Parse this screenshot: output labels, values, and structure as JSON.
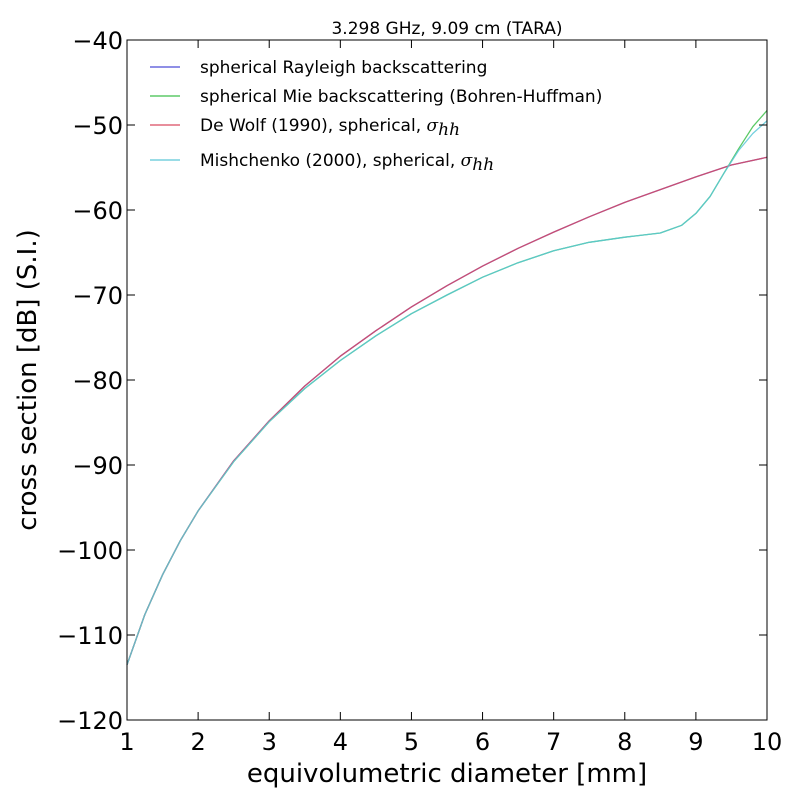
{
  "chart_data": {
    "type": "line",
    "title": "3.298 GHz, 9.09 cm (TARA)",
    "xlabel": "equivolumetric diameter [mm]",
    "ylabel": "cross section [dB] (S.I.)",
    "xlim": [
      1,
      10
    ],
    "ylim": [
      -120,
      -40
    ],
    "xticks": [
      1,
      2,
      3,
      4,
      5,
      6,
      7,
      8,
      9,
      10
    ],
    "yticks": [
      -120,
      -110,
      -100,
      -90,
      -80,
      -70,
      -60,
      -50,
      -40
    ],
    "xtick_labels": [
      "1",
      "2",
      "3",
      "4",
      "5",
      "6",
      "7",
      "8",
      "9",
      "10"
    ],
    "ytick_labels": [
      "−120",
      "−110",
      "−100",
      "−90",
      "−80",
      "−70",
      "−60",
      "−50",
      "−40"
    ],
    "grid": false,
    "legend_position": "top-left",
    "series": [
      {
        "name": "spherical Rayleigh backscattering",
        "color": "#4c4cd6",
        "x": [
          1.0,
          1.25,
          1.5,
          1.75,
          2.0,
          2.5,
          3.0,
          3.5,
          4.0,
          4.5,
          5.0,
          5.5,
          6.0,
          6.5,
          7.0,
          7.5,
          8.0,
          8.5,
          9.0,
          9.5,
          10.0
        ],
        "y": [
          -113.5,
          -107.6,
          -102.9,
          -98.9,
          -95.4,
          -89.5,
          -84.8,
          -80.7,
          -77.2,
          -74.2,
          -71.4,
          -68.9,
          -66.6,
          -64.5,
          -62.6,
          -60.8,
          -59.1,
          -57.6,
          -56.1,
          -54.7,
          -53.8
        ]
      },
      {
        "name": "spherical Mie backscattering (Bohren-Huffman)",
        "color": "#3dbf4a",
        "x": [
          1.0,
          1.25,
          1.5,
          1.75,
          2.0,
          2.5,
          3.0,
          3.5,
          4.0,
          4.5,
          5.0,
          5.5,
          6.0,
          6.5,
          7.0,
          7.5,
          8.0,
          8.5,
          8.8,
          9.0,
          9.2,
          9.4,
          9.6,
          9.8,
          10.0
        ],
        "y": [
          -113.5,
          -107.6,
          -102.9,
          -98.9,
          -95.4,
          -89.6,
          -84.9,
          -81.0,
          -77.7,
          -74.8,
          -72.2,
          -70.0,
          -67.9,
          -66.2,
          -64.8,
          -63.8,
          -63.2,
          -62.7,
          -61.8,
          -60.4,
          -58.4,
          -55.6,
          -52.8,
          -50.2,
          -48.3
        ]
      },
      {
        "name": "De Wolf (1990), spherical, ",
        "subscript_label": "σ",
        "subscript": "hh",
        "color": "#d94a60",
        "x": [
          1.0,
          1.25,
          1.5,
          1.75,
          2.0,
          2.5,
          3.0,
          3.5,
          4.0,
          4.5,
          5.0,
          5.5,
          6.0,
          6.5,
          7.0,
          7.5,
          8.0,
          8.5,
          9.0,
          9.5,
          10.0
        ],
        "y": [
          -113.5,
          -107.6,
          -102.9,
          -98.9,
          -95.4,
          -89.5,
          -84.8,
          -80.7,
          -77.2,
          -74.2,
          -71.4,
          -68.9,
          -66.6,
          -64.5,
          -62.6,
          -60.8,
          -59.1,
          -57.6,
          -56.1,
          -54.7,
          -53.8
        ]
      },
      {
        "name": "Mishchenko (2000), spherical, ",
        "subscript_label": "σ",
        "subscript": "hh",
        "color": "#5cc8d8",
        "x": [
          1.0,
          1.25,
          1.5,
          1.75,
          2.0,
          2.5,
          3.0,
          3.5,
          4.0,
          4.5,
          5.0,
          5.5,
          6.0,
          6.5,
          7.0,
          7.5,
          8.0,
          8.5,
          8.8,
          9.0,
          9.2,
          9.4,
          9.6,
          9.8,
          10.0
        ],
        "y": [
          -113.5,
          -107.6,
          -102.9,
          -98.9,
          -95.4,
          -89.6,
          -84.9,
          -81.0,
          -77.7,
          -74.8,
          -72.2,
          -70.0,
          -67.9,
          -66.2,
          -64.8,
          -63.8,
          -63.2,
          -62.7,
          -61.8,
          -60.4,
          -58.4,
          -55.6,
          -53.0,
          -51.0,
          -49.5
        ]
      }
    ]
  }
}
